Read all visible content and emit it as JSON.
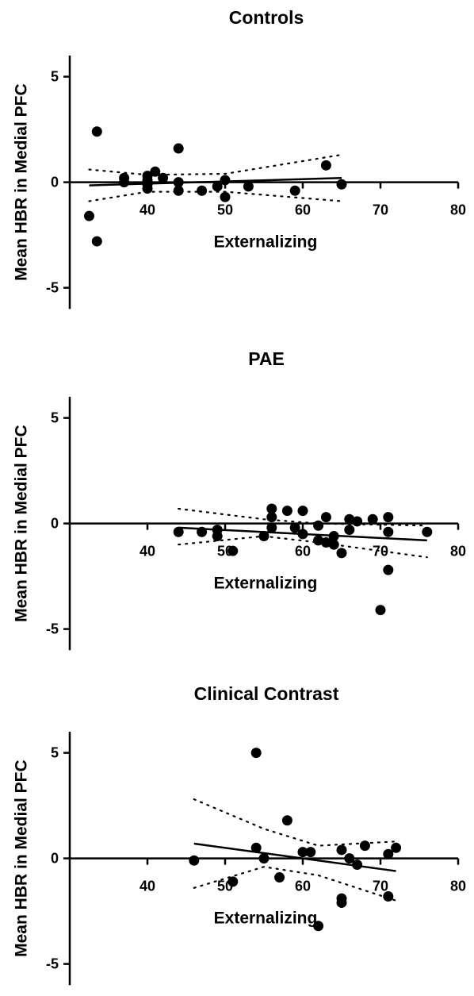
{
  "chart_data": [
    {
      "type": "scatter",
      "title": "Controls",
      "xlabel": "Externalizing",
      "ylabel": "Mean HBR in Medial PFC",
      "xlim": [
        30,
        80
      ],
      "ylim": [
        -6,
        6
      ],
      "xticks": [
        {
          "value": 40,
          "label": "40"
        },
        {
          "value": 50,
          "label": "50"
        },
        {
          "value": 60,
          "label": "60"
        },
        {
          "value": 70,
          "label": "70"
        },
        {
          "value": 80,
          "label": "80"
        }
      ],
      "yticks": [
        {
          "value": 5,
          "label": "5"
        },
        {
          "value": 0,
          "label": "0"
        },
        {
          "value": -5,
          "label": "-5"
        }
      ],
      "points": [
        [
          32.5,
          -1.6
        ],
        [
          33.5,
          2.4
        ],
        [
          33.5,
          -2.8
        ],
        [
          37,
          0.2
        ],
        [
          37,
          0.0
        ],
        [
          40,
          0.3
        ],
        [
          40,
          0.1
        ],
        [
          40,
          -0.1
        ],
        [
          40,
          -0.3
        ],
        [
          41,
          0.5
        ],
        [
          42,
          0.2
        ],
        [
          44,
          1.6
        ],
        [
          44,
          0.0
        ],
        [
          44,
          -0.4
        ],
        [
          47,
          -0.4
        ],
        [
          49,
          -0.2
        ],
        [
          50,
          0.1
        ],
        [
          50,
          -0.7
        ],
        [
          53,
          -0.2
        ],
        [
          59,
          -0.4
        ],
        [
          63,
          0.8
        ],
        [
          65,
          -0.1
        ]
      ],
      "fit": {
        "x": [
          32.5,
          65
        ],
        "y": [
          -0.15,
          0.2
        ]
      },
      "ci_upper": [
        [
          32.5,
          0.6
        ],
        [
          40,
          0.35
        ],
        [
          50,
          0.4
        ],
        [
          65,
          1.3
        ]
      ],
      "ci_lower": [
        [
          32.5,
          -0.9
        ],
        [
          40,
          -0.45
        ],
        [
          50,
          -0.45
        ],
        [
          65,
          -0.9
        ]
      ]
    },
    {
      "type": "scatter",
      "title": "PAE",
      "xlabel": "Externalizing",
      "ylabel": "Mean HBR in Medial PFC",
      "xlim": [
        30,
        80
      ],
      "ylim": [
        -6,
        6
      ],
      "xticks": [
        {
          "value": 40,
          "label": "40"
        },
        {
          "value": 50,
          "label": "50"
        },
        {
          "value": 60,
          "label": "60"
        },
        {
          "value": 70,
          "label": "70"
        },
        {
          "value": 80,
          "label": "80"
        }
      ],
      "yticks": [
        {
          "value": 5,
          "label": "5"
        },
        {
          "value": 0,
          "label": "0"
        },
        {
          "value": -5,
          "label": "-5"
        }
      ],
      "points": [
        [
          44,
          -0.4
        ],
        [
          47,
          -0.4
        ],
        [
          49,
          -0.3
        ],
        [
          49,
          -0.6
        ],
        [
          51,
          -1.3
        ],
        [
          55,
          -0.6
        ],
        [
          56,
          0.7
        ],
        [
          56,
          0.3
        ],
        [
          56,
          -0.2
        ],
        [
          58,
          0.6
        ],
        [
          59,
          -0.2
        ],
        [
          60,
          0.6
        ],
        [
          60,
          -0.5
        ],
        [
          62,
          -0.1
        ],
        [
          62,
          -0.8
        ],
        [
          63,
          0.3
        ],
        [
          63,
          -0.9
        ],
        [
          64,
          -0.6
        ],
        [
          64,
          -1.0
        ],
        [
          65,
          -1.4
        ],
        [
          66,
          0.2
        ],
        [
          66,
          -0.3
        ],
        [
          67,
          0.1
        ],
        [
          69,
          0.2
        ],
        [
          70,
          -4.1
        ],
        [
          71,
          0.3
        ],
        [
          71,
          -0.4
        ],
        [
          71,
          -2.2
        ],
        [
          76,
          -0.4
        ]
      ],
      "fit": {
        "x": [
          44,
          76
        ],
        "y": [
          -0.2,
          -0.8
        ]
      },
      "ci_upper": [
        [
          44,
          0.7
        ],
        [
          55,
          0.2
        ],
        [
          62,
          0.0
        ],
        [
          76,
          -0.1
        ]
      ],
      "ci_lower": [
        [
          44,
          -1.0
        ],
        [
          55,
          -0.6
        ],
        [
          62,
          -0.9
        ],
        [
          76,
          -1.6
        ]
      ]
    },
    {
      "type": "scatter",
      "title": "Clinical Contrast",
      "xlabel": "Externalizing",
      "ylabel": "Mean HBR in Medial PFC",
      "xlim": [
        30,
        80
      ],
      "ylim": [
        -6,
        6
      ],
      "xticks": [
        {
          "value": 40,
          "label": "40"
        },
        {
          "value": 50,
          "label": "50"
        },
        {
          "value": 60,
          "label": "60"
        },
        {
          "value": 70,
          "label": "70"
        },
        {
          "value": 80,
          "label": "80"
        }
      ],
      "yticks": [
        {
          "value": 5,
          "label": "5"
        },
        {
          "value": 0,
          "label": "0"
        },
        {
          "value": -5,
          "label": "-5"
        }
      ],
      "points": [
        [
          46,
          -0.1
        ],
        [
          51,
          -1.1
        ],
        [
          54,
          5.0
        ],
        [
          54,
          0.5
        ],
        [
          55,
          0.0
        ],
        [
          57,
          -0.9
        ],
        [
          58,
          1.8
        ],
        [
          60,
          0.3
        ],
        [
          61,
          0.3
        ],
        [
          62,
          -3.2
        ],
        [
          65,
          0.4
        ],
        [
          65,
          -1.9
        ],
        [
          65,
          -2.1
        ],
        [
          66,
          0.0
        ],
        [
          67,
          -0.3
        ],
        [
          68,
          0.6
        ],
        [
          71,
          0.2
        ],
        [
          71,
          -1.8
        ],
        [
          72,
          0.5
        ]
      ],
      "fit": {
        "x": [
          46,
          72
        ],
        "y": [
          0.7,
          -0.6
        ]
      },
      "ci_upper": [
        [
          46,
          2.8
        ],
        [
          55,
          1.4
        ],
        [
          62,
          0.6
        ],
        [
          72,
          0.8
        ]
      ],
      "ci_lower": [
        [
          46,
          -1.4
        ],
        [
          55,
          -0.4
        ],
        [
          62,
          -0.8
        ],
        [
          72,
          -2.0
        ]
      ]
    }
  ]
}
